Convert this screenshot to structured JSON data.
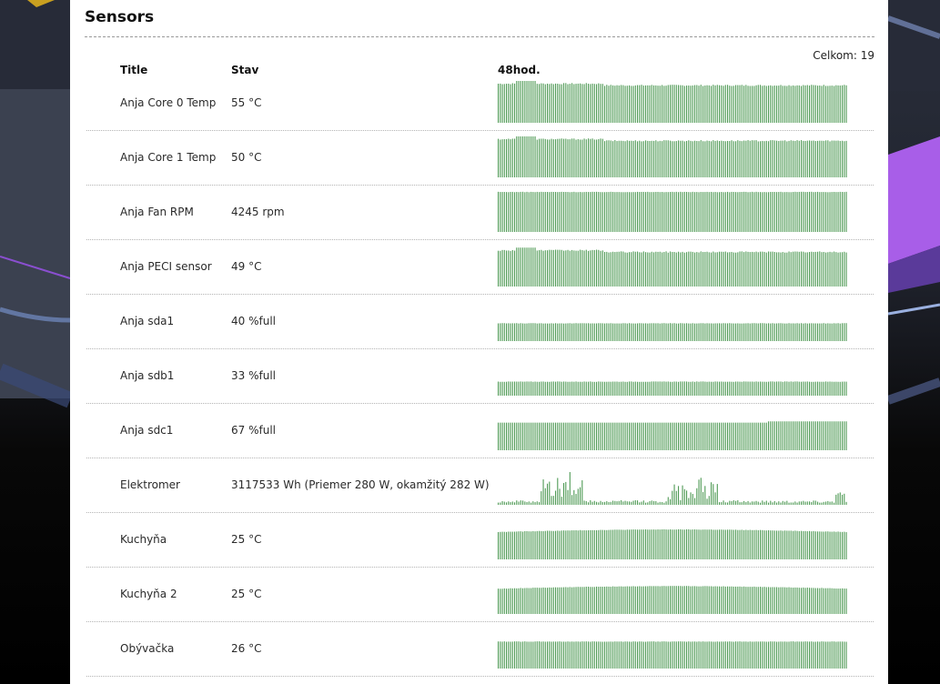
{
  "page": {
    "title": "Sensors",
    "total_text": "Celkom: 19"
  },
  "table": {
    "headers": {
      "title": "Title",
      "stav": "Stav",
      "history": "48hod."
    },
    "rows": [
      {
        "title": "Anja Core 0 Temp",
        "stav": "55 °C",
        "history_level": 0.92,
        "history_shape": "early-spike"
      },
      {
        "title": "Anja Core 1 Temp",
        "stav": "50 °C",
        "history_level": 0.9,
        "history_shape": "early-spike"
      },
      {
        "title": "Anja Fan RPM",
        "stav": "4245 rpm",
        "history_level": 0.95,
        "history_shape": "flat"
      },
      {
        "title": "Anja PECI sensor",
        "stav": "49 °C",
        "history_level": 0.85,
        "history_shape": "early-spike"
      },
      {
        "title": "Anja sda1",
        "stav": "40 %full",
        "history_level": 0.42,
        "history_shape": "flat"
      },
      {
        "title": "Anja sdb1",
        "stav": "33 %full",
        "history_level": 0.33,
        "history_shape": "flat"
      },
      {
        "title": "Anja sdc1",
        "stav": "67 %full",
        "history_level": 0.66,
        "history_shape": "step-up"
      },
      {
        "title": "Elektromer",
        "stav": "3117533 Wh (Priemer 280 W, okamžitý 282 W)",
        "history_level": 0.12,
        "history_shape": "bursty"
      },
      {
        "title": "Kuchyňa",
        "stav": "25 °C",
        "history_level": 0.68,
        "history_shape": "gentle"
      },
      {
        "title": "Kuchyňa 2",
        "stav": "25 °C",
        "history_level": 0.63,
        "history_shape": "gentle"
      },
      {
        "title": "Obývačka",
        "stav": "26 °C",
        "history_level": 0.64,
        "history_shape": "flat"
      }
    ]
  },
  "colors": {
    "spark_bar": "#4f9a55",
    "panel_bg": "#ffffff",
    "accent_purple": "#b65cf0"
  }
}
